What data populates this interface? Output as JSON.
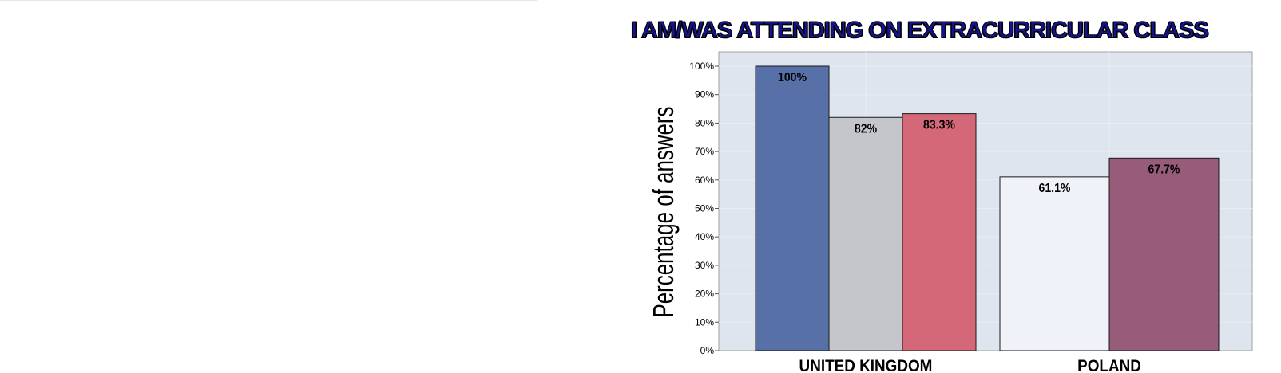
{
  "chart_data": {
    "type": "bar",
    "title": "I AM/WAS ATTENDING ON EXTRACURRICULAR CLASS",
    "ylabel": "Percentage of answers",
    "xlabel": "",
    "ylim": [
      0,
      100
    ],
    "yticks": [
      "0%",
      "10%",
      "20%",
      "30%",
      "40%",
      "50%",
      "60%",
      "70%",
      "80%",
      "90%",
      "100%"
    ],
    "categories": [
      "UNITED KINGDOM",
      "POLAND"
    ],
    "groups": [
      {
        "category": "UNITED KINGDOM",
        "bars": [
          {
            "value": 100,
            "label": "100%",
            "color": "#5870a8"
          },
          {
            "value": 82,
            "label": "82%",
            "color": "#c4c6cb"
          },
          {
            "value": 83.3,
            "label": "83.3%",
            "color": "#d46878"
          }
        ]
      },
      {
        "category": "POLAND",
        "bars": [
          {
            "value": 61.1,
            "label": "61.1%",
            "color": "#eff2f8"
          },
          {
            "value": 67.7,
            "label": "67.7%",
            "color": "#965c7a"
          }
        ]
      }
    ],
    "grid": true,
    "legend": "none",
    "colors": {
      "plot_background": "#dfe5ef",
      "gridline": "#e8ecf3",
      "title_fill": "#14148c"
    }
  }
}
